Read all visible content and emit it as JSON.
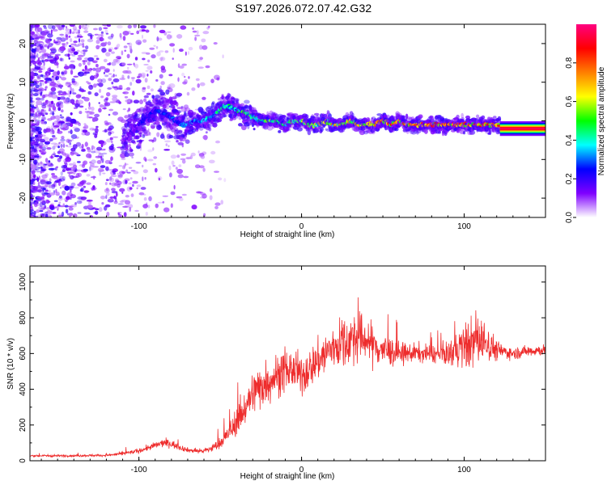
{
  "title": "S197.2026.072.07.42.G32",
  "chart_data": [
    {
      "type": "heatmap",
      "name": "spectrogram",
      "xlabel": "Height of straight line (km)",
      "ylabel": "Frequency (Hz)",
      "xlim": [
        -167,
        150
      ],
      "ylim": [
        -25,
        25
      ],
      "xticks": [
        -100,
        0,
        100
      ],
      "yticks": [
        -20,
        -10,
        0,
        10,
        20
      ],
      "colorbar": {
        "label": "Normalized spectral amplitude",
        "ticks": [
          0.0,
          0.2,
          0.4,
          0.6,
          0.8
        ],
        "range": [
          0,
          1
        ],
        "colors": [
          "#ffffff",
          "#7f00ff",
          "#0000ff",
          "#00ffff",
          "#00ff00",
          "#ffff00",
          "#ff7f00",
          "#ff0000",
          "#ff0080"
        ]
      },
      "signal_track": {
        "x": [
          -110,
          -105,
          -100,
          -95,
          -90,
          -85,
          -80,
          -75,
          -70,
          -65,
          -60,
          -55,
          -50,
          -45,
          -40,
          -35,
          -30,
          -25,
          -20,
          -15,
          -10,
          -5,
          0,
          5,
          10,
          15,
          20,
          25,
          30,
          35,
          40,
          45,
          50,
          55,
          60,
          65,
          70,
          75,
          80,
          85,
          90,
          95,
          100,
          105,
          110,
          115,
          120,
          130,
          140,
          150
        ],
        "freq": [
          -5,
          -3,
          -1,
          1,
          3,
          2,
          1,
          -1,
          -1,
          0,
          0,
          1,
          3,
          4,
          3,
          2,
          1,
          0,
          0,
          0,
          -1,
          0,
          0,
          -1,
          -1,
          0,
          -1,
          -1,
          0,
          -1,
          -1,
          -1,
          0,
          -1,
          0,
          -1,
          -1,
          -1,
          -1,
          -1,
          -1,
          -1,
          -1,
          -1,
          -1,
          -1,
          -1,
          -2,
          -2,
          -2
        ],
        "amplitude": [
          0.1,
          0.15,
          0.2,
          0.25,
          0.25,
          0.3,
          0.3,
          0.3,
          0.35,
          0.35,
          0.4,
          0.4,
          0.45,
          0.45,
          0.45,
          0.5,
          0.5,
          0.5,
          0.55,
          0.55,
          0.55,
          0.6,
          0.6,
          0.6,
          0.65,
          0.65,
          0.7,
          0.7,
          0.7,
          0.75,
          0.75,
          0.8,
          0.8,
          0.8,
          0.85,
          0.85,
          0.9,
          0.9,
          0.9,
          0.9,
          0.9,
          0.9,
          0.85,
          0.85,
          0.85,
          0.85,
          0.9,
          0.95,
          0.95,
          0.95
        ]
      }
    },
    {
      "type": "line",
      "name": "snr",
      "xlabel": "Height of straight line (km)",
      "ylabel": "SNR (10 * v/v)",
      "xlim": [
        -167,
        150
      ],
      "ylim": [
        0,
        1090
      ],
      "xticks": [
        -100,
        0,
        100
      ],
      "yticks": [
        0,
        200,
        400,
        600,
        800,
        1000
      ],
      "color": "#ee2c2c",
      "series": [
        {
          "name": "SNR",
          "x": [
            -167,
            -150,
            -140,
            -130,
            -120,
            -110,
            -100,
            -95,
            -90,
            -85,
            -80,
            -75,
            -70,
            -65,
            -60,
            -55,
            -50,
            -45,
            -40,
            -35,
            -30,
            -25,
            -20,
            -15,
            -10,
            -5,
            0,
            5,
            10,
            15,
            20,
            25,
            30,
            35,
            40,
            45,
            50,
            55,
            60,
            65,
            70,
            75,
            80,
            85,
            90,
            95,
            100,
            105,
            110,
            115,
            120,
            125,
            130,
            140,
            150
          ],
          "y": [
            28,
            28,
            28,
            30,
            30,
            40,
            55,
            70,
            85,
            100,
            95,
            75,
            60,
            55,
            55,
            70,
            100,
            150,
            220,
            290,
            380,
            420,
            450,
            480,
            500,
            510,
            470,
            520,
            560,
            600,
            640,
            660,
            680,
            690,
            680,
            640,
            620,
            610,
            600,
            600,
            605,
            600,
            600,
            590,
            600,
            620,
            640,
            660,
            680,
            650,
            620,
            610,
            600,
            615,
            620
          ],
          "spread": [
            10,
            10,
            10,
            10,
            10,
            15,
            20,
            25,
            30,
            35,
            35,
            25,
            20,
            20,
            25,
            35,
            50,
            80,
            120,
            150,
            190,
            200,
            190,
            180,
            170,
            170,
            180,
            170,
            180,
            200,
            200,
            220,
            220,
            210,
            200,
            170,
            150,
            130,
            100,
            90,
            80,
            80,
            80,
            80,
            100,
            160,
            200,
            220,
            220,
            150,
            90,
            60,
            50,
            50,
            50
          ]
        }
      ]
    }
  ]
}
